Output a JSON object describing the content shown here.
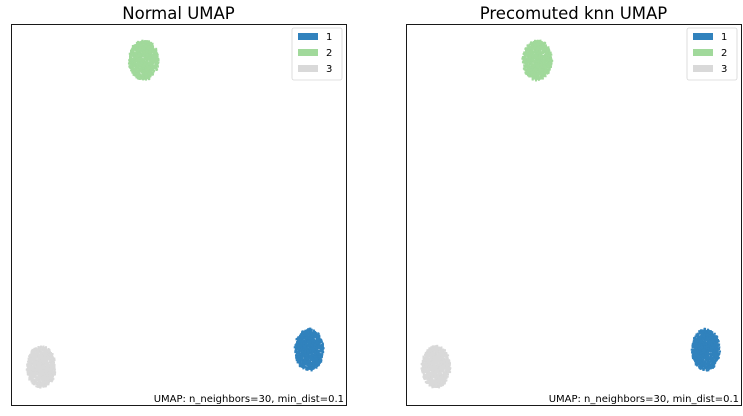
{
  "chart_data": [
    {
      "type": "scatter",
      "title": "Normal UMAP",
      "annotation": "UMAP: n_neighbors=30, min_dist=0.1",
      "legend_position": "top-right",
      "xlim": [
        0,
        100
      ],
      "ylim": [
        0,
        100
      ],
      "grid": false,
      "ticks_visible": false,
      "series": [
        {
          "name": "1",
          "color": "#3182bd",
          "center": [
            89,
            14.5
          ],
          "spread": [
            4.4,
            5.6
          ],
          "n_points": 1200
        },
        {
          "name": "2",
          "color": "#a1d99b",
          "center": [
            39.6,
            90.5
          ],
          "spread": [
            4.6,
            5.4
          ],
          "n_points": 1200
        },
        {
          "name": "3",
          "color": "#d9d9d9",
          "center": [
            9.0,
            10.0
          ],
          "spread": [
            4.4,
            5.7
          ],
          "n_points": 1200
        }
      ]
    },
    {
      "type": "scatter",
      "title": "Precomuted knn UMAP",
      "annotation": "UMAP: n_neighbors=30, min_dist=0.1",
      "legend_position": "top-right",
      "xlim": [
        0,
        100
      ],
      "ylim": [
        0,
        100
      ],
      "grid": false,
      "ticks_visible": false,
      "series": [
        {
          "name": "1",
          "color": "#3182bd",
          "center": [
            89.5,
            14.5
          ],
          "spread": [
            4.3,
            5.6
          ],
          "n_points": 1200
        },
        {
          "name": "2",
          "color": "#a1d99b",
          "center": [
            39.2,
            90.5
          ],
          "spread": [
            4.5,
            5.4
          ],
          "n_points": 1200
        },
        {
          "name": "3",
          "color": "#d9d9d9",
          "center": [
            9.0,
            10.0
          ],
          "spread": [
            4.4,
            5.7
          ],
          "n_points": 1200
        }
      ]
    }
  ]
}
